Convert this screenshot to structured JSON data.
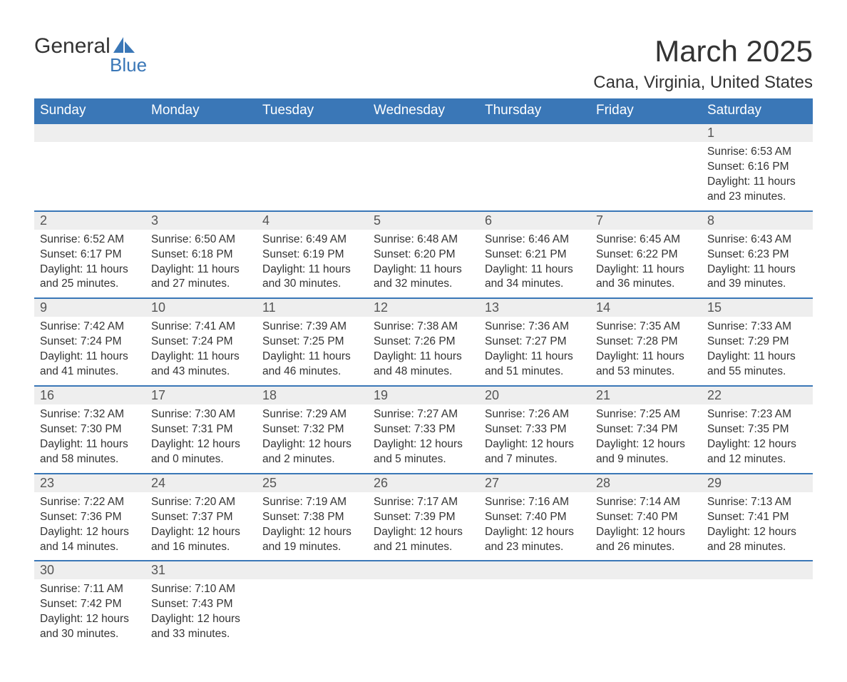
{
  "logo": {
    "text_top": "General",
    "text_bottom": "Blue",
    "text_top_color": "#333333",
    "text_bottom_color": "#3a77b7",
    "icon_color": "#3a77b7"
  },
  "title": {
    "month_year": "March 2025",
    "location": "Cana, Virginia, United States"
  },
  "colors": {
    "header_bg": "#3a77b7",
    "header_text": "#ffffff",
    "daynum_bg": "#eeeeee",
    "daynum_border": "#3a77b7",
    "body_text": "#333333",
    "background": "#ffffff"
  },
  "fonts": {
    "family": "Arial, Helvetica, sans-serif",
    "title_size_pt": 32,
    "location_size_pt": 18,
    "header_size_pt": 14,
    "daynum_size_pt": 14,
    "cell_size_pt": 12
  },
  "day_headers": [
    "Sunday",
    "Monday",
    "Tuesday",
    "Wednesday",
    "Thursday",
    "Friday",
    "Saturday"
  ],
  "weeks": [
    {
      "numbers": [
        "",
        "",
        "",
        "",
        "",
        "",
        "1"
      ],
      "cells": [
        {
          "lines": []
        },
        {
          "lines": []
        },
        {
          "lines": []
        },
        {
          "lines": []
        },
        {
          "lines": []
        },
        {
          "lines": []
        },
        {
          "lines": [
            "Sunrise: 6:53 AM",
            "Sunset: 6:16 PM",
            "Daylight: 11 hours",
            "and 23 minutes."
          ]
        }
      ]
    },
    {
      "numbers": [
        "2",
        "3",
        "4",
        "5",
        "6",
        "7",
        "8"
      ],
      "cells": [
        {
          "lines": [
            "Sunrise: 6:52 AM",
            "Sunset: 6:17 PM",
            "Daylight: 11 hours",
            "and 25 minutes."
          ]
        },
        {
          "lines": [
            "Sunrise: 6:50 AM",
            "Sunset: 6:18 PM",
            "Daylight: 11 hours",
            "and 27 minutes."
          ]
        },
        {
          "lines": [
            "Sunrise: 6:49 AM",
            "Sunset: 6:19 PM",
            "Daylight: 11 hours",
            "and 30 minutes."
          ]
        },
        {
          "lines": [
            "Sunrise: 6:48 AM",
            "Sunset: 6:20 PM",
            "Daylight: 11 hours",
            "and 32 minutes."
          ]
        },
        {
          "lines": [
            "Sunrise: 6:46 AM",
            "Sunset: 6:21 PM",
            "Daylight: 11 hours",
            "and 34 minutes."
          ]
        },
        {
          "lines": [
            "Sunrise: 6:45 AM",
            "Sunset: 6:22 PM",
            "Daylight: 11 hours",
            "and 36 minutes."
          ]
        },
        {
          "lines": [
            "Sunrise: 6:43 AM",
            "Sunset: 6:23 PM",
            "Daylight: 11 hours",
            "and 39 minutes."
          ]
        }
      ]
    },
    {
      "numbers": [
        "9",
        "10",
        "11",
        "12",
        "13",
        "14",
        "15"
      ],
      "cells": [
        {
          "lines": [
            "Sunrise: 7:42 AM",
            "Sunset: 7:24 PM",
            "Daylight: 11 hours",
            "and 41 minutes."
          ]
        },
        {
          "lines": [
            "Sunrise: 7:41 AM",
            "Sunset: 7:24 PM",
            "Daylight: 11 hours",
            "and 43 minutes."
          ]
        },
        {
          "lines": [
            "Sunrise: 7:39 AM",
            "Sunset: 7:25 PM",
            "Daylight: 11 hours",
            "and 46 minutes."
          ]
        },
        {
          "lines": [
            "Sunrise: 7:38 AM",
            "Sunset: 7:26 PM",
            "Daylight: 11 hours",
            "and 48 minutes."
          ]
        },
        {
          "lines": [
            "Sunrise: 7:36 AM",
            "Sunset: 7:27 PM",
            "Daylight: 11 hours",
            "and 51 minutes."
          ]
        },
        {
          "lines": [
            "Sunrise: 7:35 AM",
            "Sunset: 7:28 PM",
            "Daylight: 11 hours",
            "and 53 minutes."
          ]
        },
        {
          "lines": [
            "Sunrise: 7:33 AM",
            "Sunset: 7:29 PM",
            "Daylight: 11 hours",
            "and 55 minutes."
          ]
        }
      ]
    },
    {
      "numbers": [
        "16",
        "17",
        "18",
        "19",
        "20",
        "21",
        "22"
      ],
      "cells": [
        {
          "lines": [
            "Sunrise: 7:32 AM",
            "Sunset: 7:30 PM",
            "Daylight: 11 hours",
            "and 58 minutes."
          ]
        },
        {
          "lines": [
            "Sunrise: 7:30 AM",
            "Sunset: 7:31 PM",
            "Daylight: 12 hours",
            "and 0 minutes."
          ]
        },
        {
          "lines": [
            "Sunrise: 7:29 AM",
            "Sunset: 7:32 PM",
            "Daylight: 12 hours",
            "and 2 minutes."
          ]
        },
        {
          "lines": [
            "Sunrise: 7:27 AM",
            "Sunset: 7:33 PM",
            "Daylight: 12 hours",
            "and 5 minutes."
          ]
        },
        {
          "lines": [
            "Sunrise: 7:26 AM",
            "Sunset: 7:33 PM",
            "Daylight: 12 hours",
            "and 7 minutes."
          ]
        },
        {
          "lines": [
            "Sunrise: 7:25 AM",
            "Sunset: 7:34 PM",
            "Daylight: 12 hours",
            "and 9 minutes."
          ]
        },
        {
          "lines": [
            "Sunrise: 7:23 AM",
            "Sunset: 7:35 PM",
            "Daylight: 12 hours",
            "and 12 minutes."
          ]
        }
      ]
    },
    {
      "numbers": [
        "23",
        "24",
        "25",
        "26",
        "27",
        "28",
        "29"
      ],
      "cells": [
        {
          "lines": [
            "Sunrise: 7:22 AM",
            "Sunset: 7:36 PM",
            "Daylight: 12 hours",
            "and 14 minutes."
          ]
        },
        {
          "lines": [
            "Sunrise: 7:20 AM",
            "Sunset: 7:37 PM",
            "Daylight: 12 hours",
            "and 16 minutes."
          ]
        },
        {
          "lines": [
            "Sunrise: 7:19 AM",
            "Sunset: 7:38 PM",
            "Daylight: 12 hours",
            "and 19 minutes."
          ]
        },
        {
          "lines": [
            "Sunrise: 7:17 AM",
            "Sunset: 7:39 PM",
            "Daylight: 12 hours",
            "and 21 minutes."
          ]
        },
        {
          "lines": [
            "Sunrise: 7:16 AM",
            "Sunset: 7:40 PM",
            "Daylight: 12 hours",
            "and 23 minutes."
          ]
        },
        {
          "lines": [
            "Sunrise: 7:14 AM",
            "Sunset: 7:40 PM",
            "Daylight: 12 hours",
            "and 26 minutes."
          ]
        },
        {
          "lines": [
            "Sunrise: 7:13 AM",
            "Sunset: 7:41 PM",
            "Daylight: 12 hours",
            "and 28 minutes."
          ]
        }
      ]
    },
    {
      "numbers": [
        "30",
        "31",
        "",
        "",
        "",
        "",
        ""
      ],
      "cells": [
        {
          "lines": [
            "Sunrise: 7:11 AM",
            "Sunset: 7:42 PM",
            "Daylight: 12 hours",
            "and 30 minutes."
          ]
        },
        {
          "lines": [
            "Sunrise: 7:10 AM",
            "Sunset: 7:43 PM",
            "Daylight: 12 hours",
            "and 33 minutes."
          ]
        },
        {
          "lines": []
        },
        {
          "lines": []
        },
        {
          "lines": []
        },
        {
          "lines": []
        },
        {
          "lines": []
        }
      ]
    }
  ]
}
